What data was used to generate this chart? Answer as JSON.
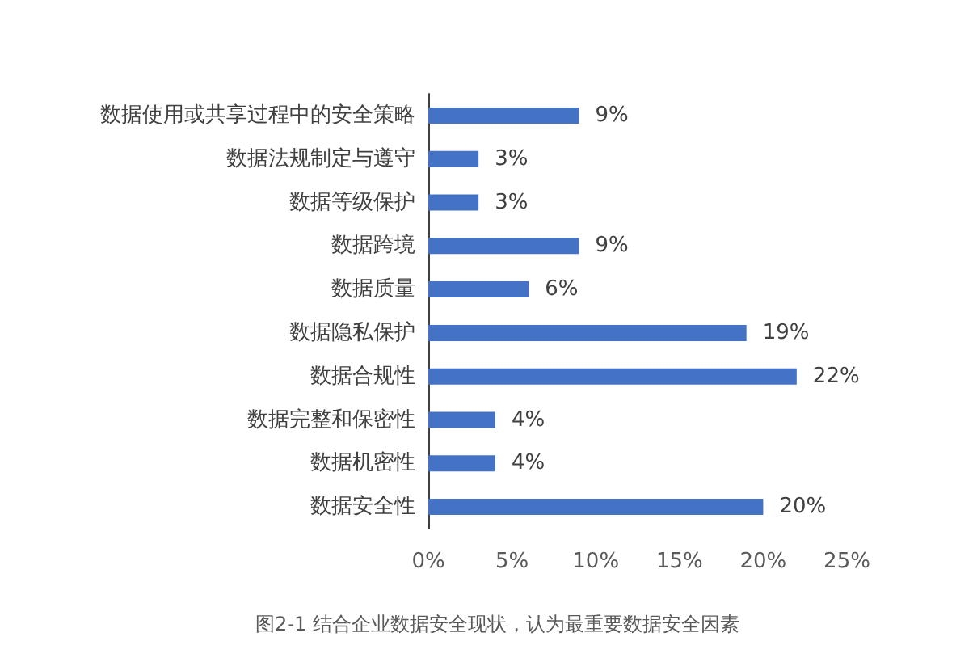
{
  "chart_data": {
    "type": "bar",
    "orientation": "horizontal",
    "categories": [
      "数据使用或共享过程中的安全策略",
      "数据法规制定与遵守",
      "数据等级保护",
      "数据跨境",
      "数据质量",
      "数据隐私保护",
      "数据合规性",
      "数据完整和保密性",
      "数据机密性",
      "数据安全性"
    ],
    "values": [
      9,
      3,
      3,
      9,
      6,
      19,
      22,
      4,
      4,
      20
    ],
    "value_labels": [
      "9%",
      "3%",
      "3%",
      "9%",
      "6%",
      "19%",
      "22%",
      "4%",
      "4%",
      "20%"
    ],
    "color": "#4472c4",
    "xlim": [
      0,
      25
    ],
    "xticks": [
      {
        "value": 0,
        "label": "0%"
      },
      {
        "value": 5,
        "label": "5%"
      },
      {
        "value": 10,
        "label": "10%"
      },
      {
        "value": 15,
        "label": "15%"
      },
      {
        "value": 20,
        "label": "20%"
      },
      {
        "value": 25,
        "label": "25%"
      }
    ],
    "annotations": [
      "图2-1 结合企业数据安全现状，认为最重要数据安全因素"
    ]
  }
}
